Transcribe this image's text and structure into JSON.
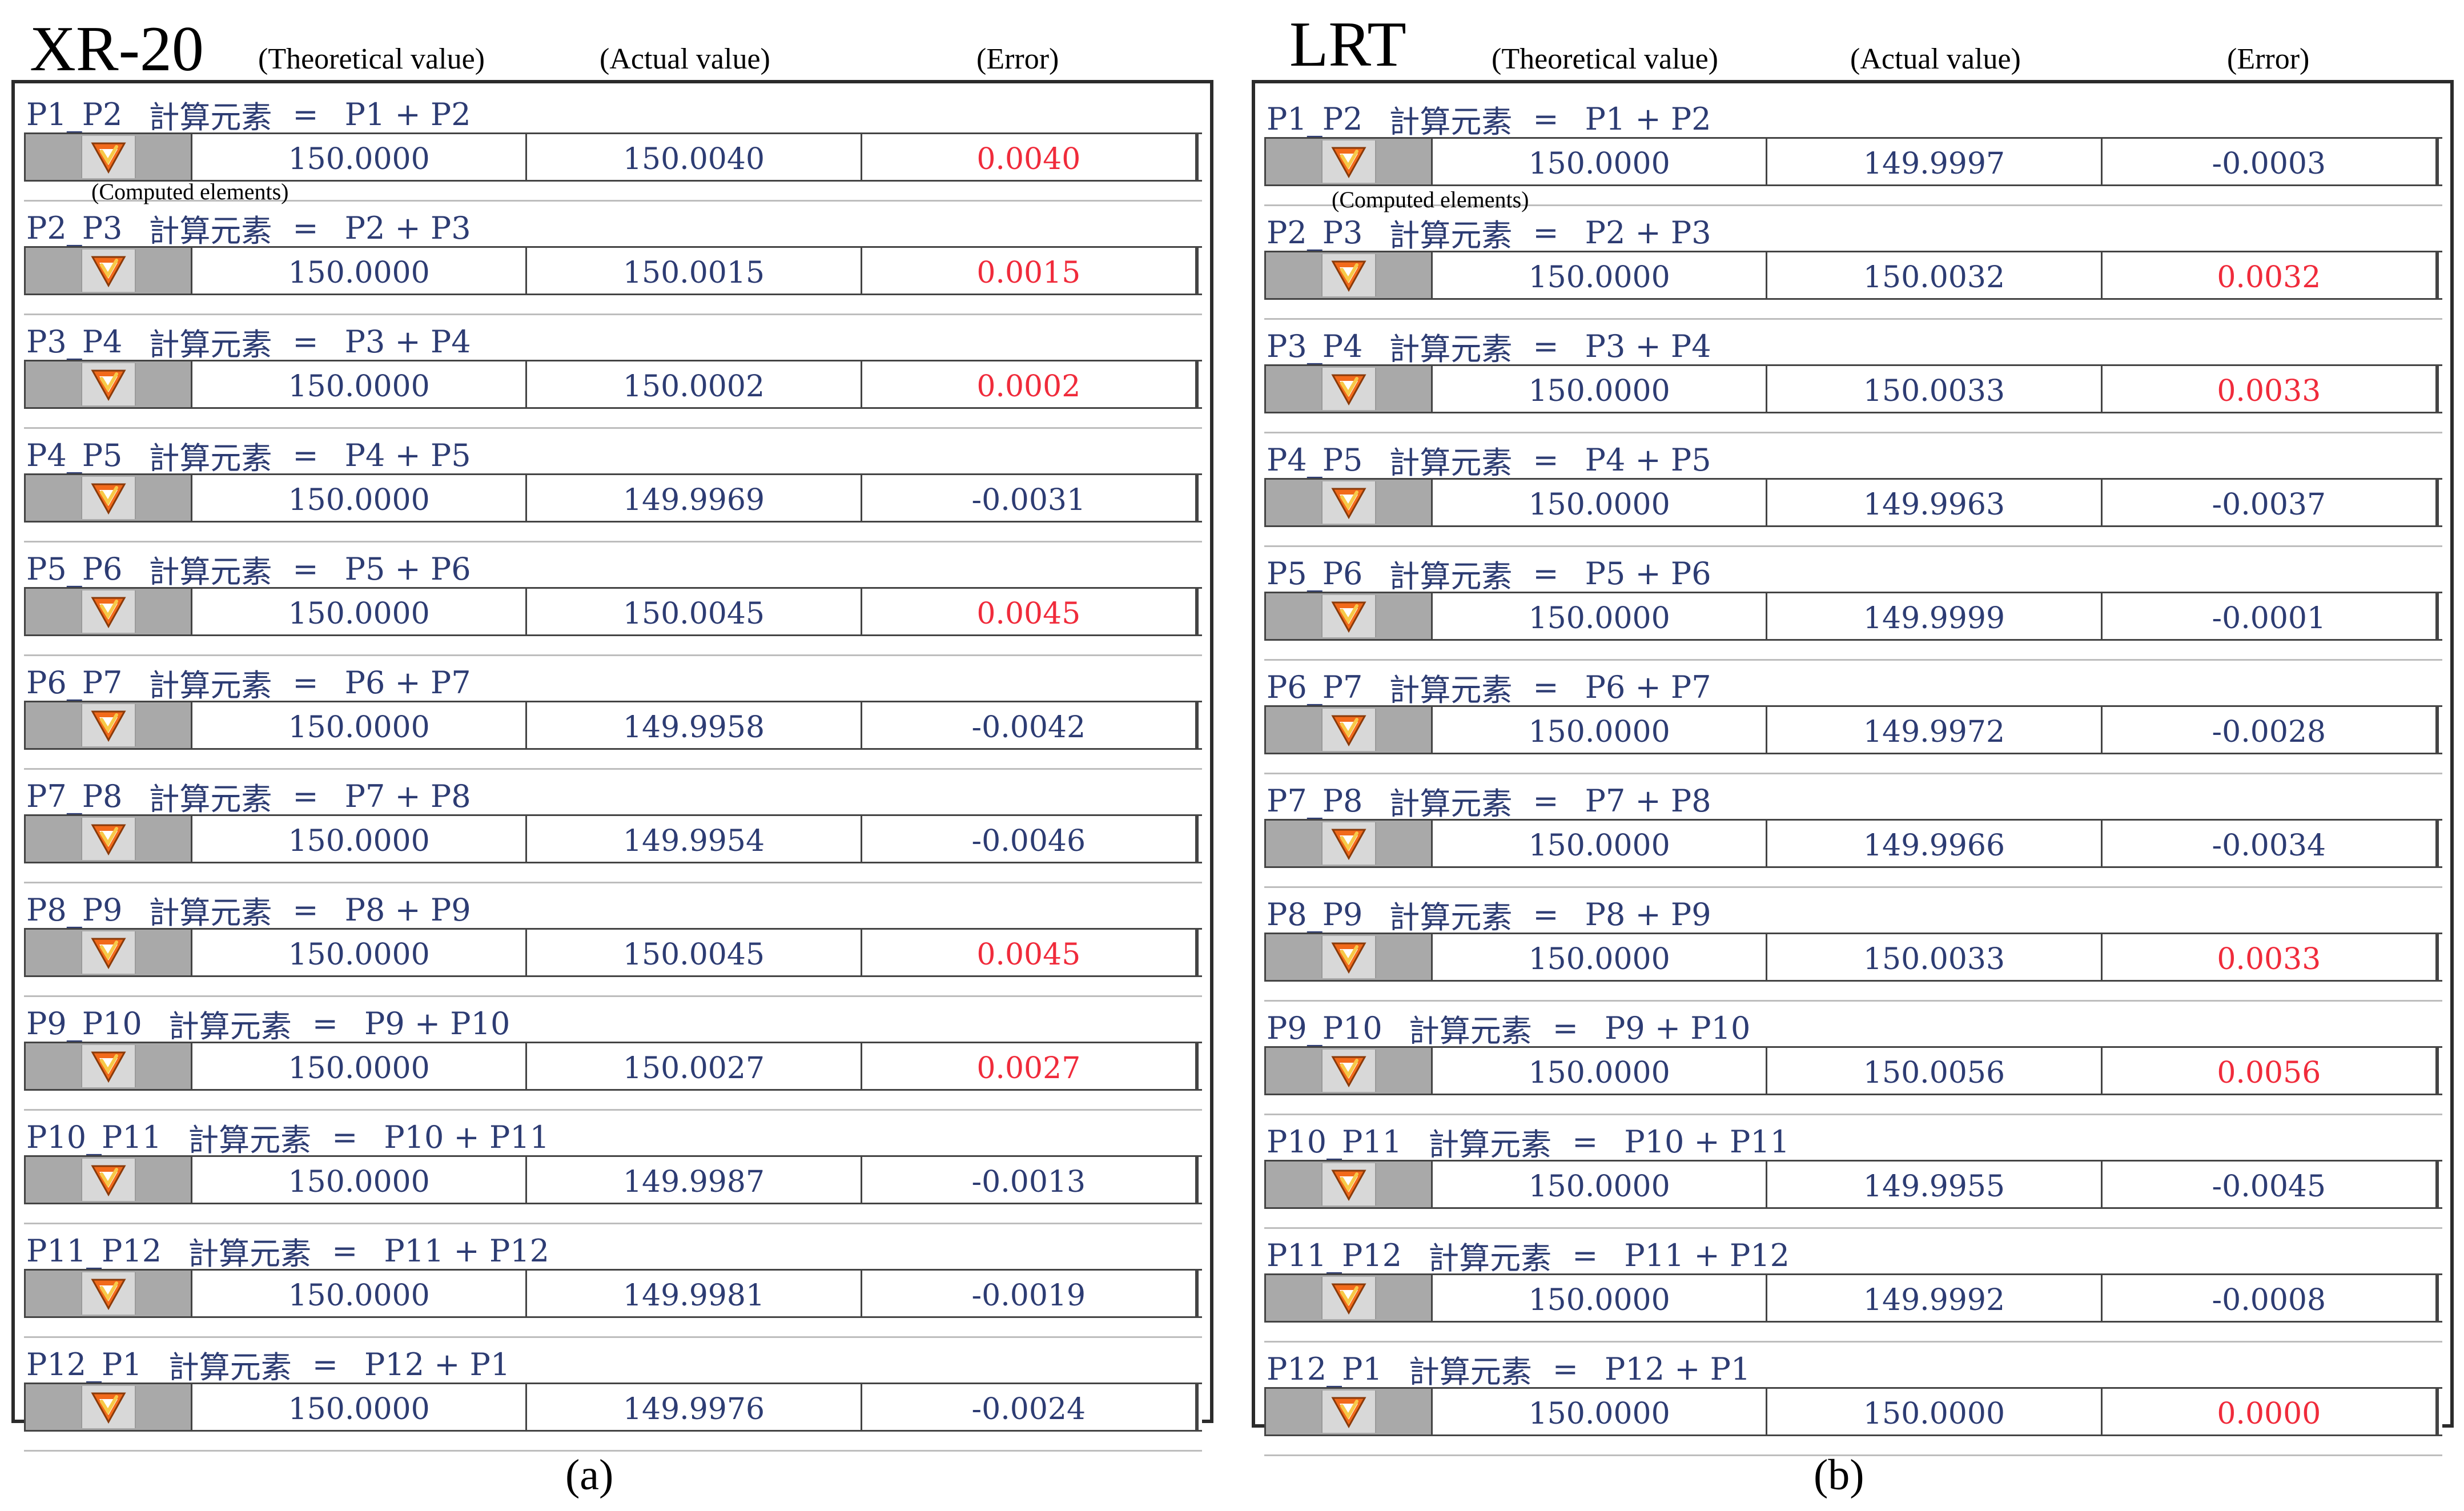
{
  "panels": [
    {
      "title": "XR-20",
      "headers": {
        "theoretical": "(Theoretical value)",
        "actual": "(Actual value)",
        "error": "(Error)"
      },
      "annotation": "(Computed elements)",
      "caption": "(a)",
      "rows": [
        {
          "name": "P1_P2",
          "label": "計算元素",
          "eq": "=",
          "formula": "P1 + P2",
          "theoretical": "150.0000",
          "actual": "150.0040",
          "error": "0.0040"
        },
        {
          "name": "P2_P3",
          "label": "計算元素",
          "eq": "=",
          "formula": "P2 + P3",
          "theoretical": "150.0000",
          "actual": "150.0015",
          "error": "0.0015"
        },
        {
          "name": "P3_P4",
          "label": "計算元素",
          "eq": "=",
          "formula": "P3 + P4",
          "theoretical": "150.0000",
          "actual": "150.0002",
          "error": "0.0002"
        },
        {
          "name": "P4_P5",
          "label": "計算元素",
          "eq": "=",
          "formula": "P4 + P5",
          "theoretical": "150.0000",
          "actual": "149.9969",
          "error": "-0.0031"
        },
        {
          "name": "P5_P6",
          "label": "計算元素",
          "eq": "=",
          "formula": "P5 + P6",
          "theoretical": "150.0000",
          "actual": "150.0045",
          "error": "0.0045"
        },
        {
          "name": "P6_P7",
          "label": "計算元素",
          "eq": "=",
          "formula": "P6 + P7",
          "theoretical": "150.0000",
          "actual": "149.9958",
          "error": "-0.0042"
        },
        {
          "name": "P7_P8",
          "label": "計算元素",
          "eq": "=",
          "formula": "P7 + P8",
          "theoretical": "150.0000",
          "actual": "149.9954",
          "error": "-0.0046"
        },
        {
          "name": "P8_P9",
          "label": "計算元素",
          "eq": "=",
          "formula": "P8 + P9",
          "theoretical": "150.0000",
          "actual": "150.0045",
          "error": "0.0045"
        },
        {
          "name": "P9_P10",
          "label": "計算元素",
          "eq": "=",
          "formula": "P9 + P10",
          "theoretical": "150.0000",
          "actual": "150.0027",
          "error": "0.0027"
        },
        {
          "name": "P10_P11",
          "label": "計算元素",
          "eq": "=",
          "formula": "P10 + P11",
          "theoretical": "150.0000",
          "actual": "149.9987",
          "error": "-0.0013"
        },
        {
          "name": "P11_P12",
          "label": "計算元素",
          "eq": "=",
          "formula": "P11 + P12",
          "theoretical": "150.0000",
          "actual": "149.9981",
          "error": "-0.0019"
        },
        {
          "name": "P12_P1",
          "label": "計算元素",
          "eq": "=",
          "formula": "P12 + P1",
          "theoretical": "150.0000",
          "actual": "149.9976",
          "error": "-0.0024"
        }
      ]
    },
    {
      "title": "LRT",
      "headers": {
        "theoretical": "(Theoretical value)",
        "actual": "(Actual value)",
        "error": "(Error)"
      },
      "annotation": "(Computed elements)",
      "caption": "(b)",
      "rows": [
        {
          "name": "P1_P2",
          "label": "計算元素",
          "eq": "=",
          "formula": "P1 + P2",
          "theoretical": "150.0000",
          "actual": "149.9997",
          "error": "-0.0003"
        },
        {
          "name": "P2_P3",
          "label": "計算元素",
          "eq": "=",
          "formula": "P2 + P3",
          "theoretical": "150.0000",
          "actual": "150.0032",
          "error": "0.0032"
        },
        {
          "name": "P3_P4",
          "label": "計算元素",
          "eq": "=",
          "formula": "P3 + P4",
          "theoretical": "150.0000",
          "actual": "150.0033",
          "error": "0.0033"
        },
        {
          "name": "P4_P5",
          "label": "計算元素",
          "eq": "=",
          "formula": "P4 + P5",
          "theoretical": "150.0000",
          "actual": "149.9963",
          "error": "-0.0037"
        },
        {
          "name": "P5_P6",
          "label": "計算元素",
          "eq": "=",
          "formula": "P5 + P6",
          "theoretical": "150.0000",
          "actual": "149.9999",
          "error": "-0.0001"
        },
        {
          "name": "P6_P7",
          "label": "計算元素",
          "eq": "=",
          "formula": "P6 + P7",
          "theoretical": "150.0000",
          "actual": "149.9972",
          "error": "-0.0028"
        },
        {
          "name": "P7_P8",
          "label": "計算元素",
          "eq": "=",
          "formula": "P7 + P8",
          "theoretical": "150.0000",
          "actual": "149.9966",
          "error": "-0.0034"
        },
        {
          "name": "P8_P9",
          "label": "計算元素",
          "eq": "=",
          "formula": "P8 + P9",
          "theoretical": "150.0000",
          "actual": "150.0033",
          "error": "0.0033"
        },
        {
          "name": "P9_P10",
          "label": "計算元素",
          "eq": "=",
          "formula": "P9 + P10",
          "theoretical": "150.0000",
          "actual": "150.0056",
          "error": "0.0056"
        },
        {
          "name": "P10_P11",
          "label": "計算元素",
          "eq": "=",
          "formula": "P10 + P11",
          "theoretical": "150.0000",
          "actual": "149.9955",
          "error": "-0.0045"
        },
        {
          "name": "P11_P12",
          "label": "計算元素",
          "eq": "=",
          "formula": "P11 + P12",
          "theoretical": "150.0000",
          "actual": "149.9992",
          "error": "-0.0008"
        },
        {
          "name": "P12_P1",
          "label": "計算元素",
          "eq": "=",
          "formula": "P12 + P1",
          "theoretical": "150.0000",
          "actual": "150.0000",
          "error": "0.0000"
        }
      ]
    }
  ],
  "colors": {
    "positive_error": "#f02b3b",
    "text": "#2d3c73",
    "icon_fill": "#f26a1b",
    "icon_check": "#f7c948"
  },
  "icon": "v-check-icon"
}
